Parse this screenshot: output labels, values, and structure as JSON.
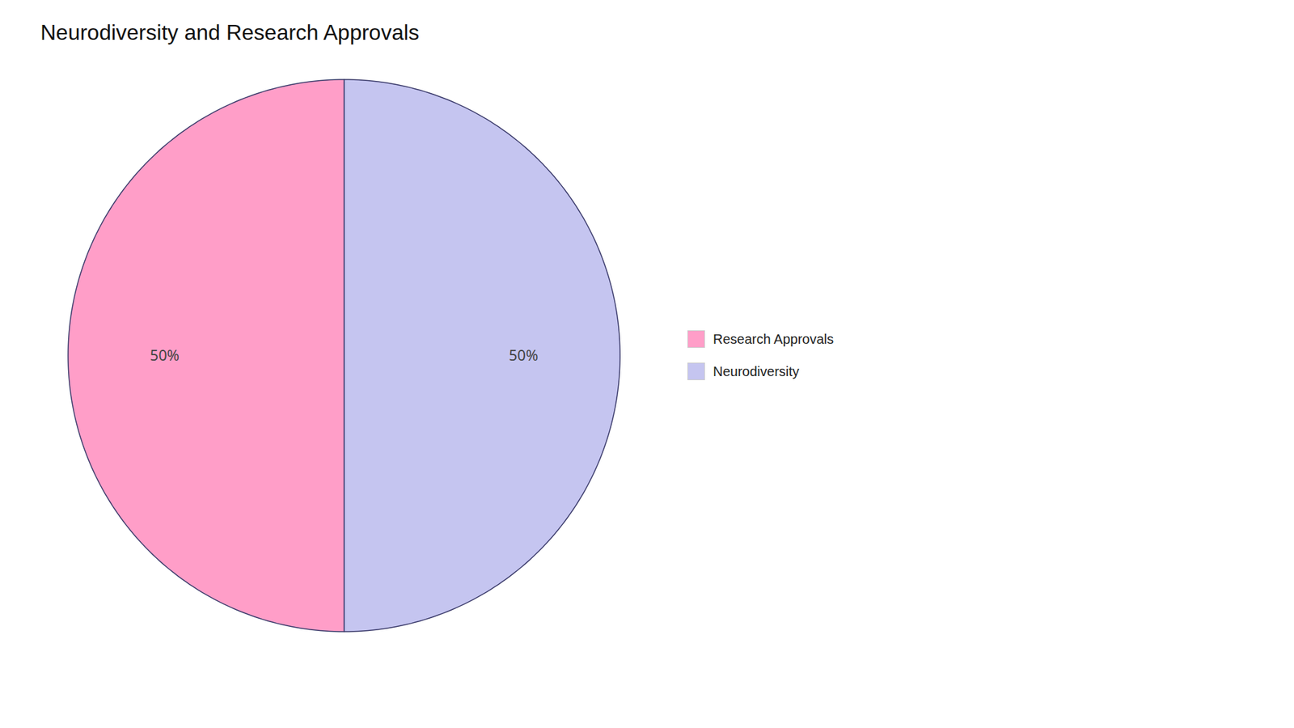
{
  "chart_data": {
    "type": "pie",
    "title": "Neurodiversity and Research Approvals",
    "categories": [
      "Neurodiversity",
      "Research Approvals"
    ],
    "values": [
      50,
      50
    ],
    "colors": [
      "#C5C5F0",
      "#FF9EC8"
    ],
    "data_labels": true,
    "value_labels": [
      "50%",
      "50%"
    ],
    "legend": "right"
  }
}
